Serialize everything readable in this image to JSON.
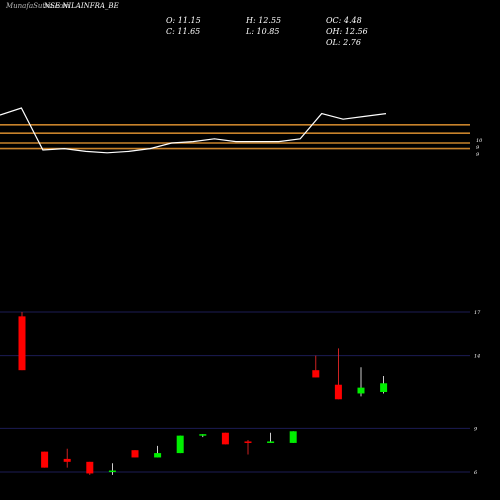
{
  "header": {
    "watermark": "MunafaSutra.com",
    "symbol": "NSE NILAINFRA_BE"
  },
  "ohlc": {
    "open": "O: 11.15",
    "high": "H: 12.55",
    "oc": "OC: 4.48",
    "close": "C: 11.65",
    "low": "L: 10.85",
    "oh": "OH: 12.56",
    "ol": "OL: 2.76"
  },
  "colors": {
    "background": "#000000",
    "up": "#00ee00",
    "down": "#ff0000",
    "wick_down": "#ff2a2a",
    "wick_up": "#ffffff",
    "ma_band": "#c8822b",
    "line": "#ffffff",
    "grid": "#1c1c55"
  },
  "chart_data": {
    "type": "candlestick",
    "price_axis": {
      "ticks": [
        17,
        14,
        9,
        6
      ],
      "tick_labels": [
        "17",
        "14",
        "9",
        "6"
      ],
      "range": [
        5.6,
        17
      ]
    },
    "upper_panel": {
      "band_levels": [
        110,
        104,
        97,
        93
      ],
      "ticks": [
        "10",
        "9",
        "9"
      ],
      "line": [
        117,
        122,
        92,
        93,
        91,
        90,
        91,
        93,
        97,
        98,
        100,
        98,
        98,
        98,
        100,
        118,
        114,
        116,
        118
      ]
    },
    "candles": [
      {
        "o": 16.7,
        "h": 17.0,
        "l": 13.0,
        "c": 13.0
      },
      {
        "o": 7.4,
        "h": 7.4,
        "l": 6.3,
        "c": 6.3
      },
      {
        "o": 6.9,
        "h": 7.6,
        "l": 6.3,
        "c": 6.7
      },
      {
        "o": 6.7,
        "h": 6.7,
        "l": 5.8,
        "c": 5.9
      },
      {
        "o": 6.0,
        "h": 6.6,
        "l": 5.8,
        "c": 6.1
      },
      {
        "o": 7.5,
        "h": 7.5,
        "l": 7.0,
        "c": 7.0
      },
      {
        "o": 7.0,
        "h": 7.8,
        "l": 7.0,
        "c": 7.3
      },
      {
        "o": 7.3,
        "h": 8.5,
        "l": 7.3,
        "c": 8.5
      },
      {
        "o": 8.5,
        "h": 8.6,
        "l": 8.4,
        "c": 8.6
      },
      {
        "o": 8.7,
        "h": 8.7,
        "l": 7.9,
        "c": 7.9
      },
      {
        "o": 8.1,
        "h": 8.2,
        "l": 7.2,
        "c": 8.0
      },
      {
        "o": 8.0,
        "h": 8.7,
        "l": 8.0,
        "c": 8.1
      },
      {
        "o": 8.0,
        "h": 8.8,
        "l": 8.0,
        "c": 8.8
      },
      {
        "o": 13.0,
        "h": 14.0,
        "l": 12.5,
        "c": 12.5
      },
      {
        "o": 12.0,
        "h": 14.5,
        "l": 11.0,
        "c": 11.0
      },
      {
        "o": 11.4,
        "h": 13.2,
        "l": 11.2,
        "c": 11.8
      },
      {
        "o": 11.5,
        "h": 12.6,
        "l": 11.4,
        "c": 12.1
      }
    ]
  }
}
